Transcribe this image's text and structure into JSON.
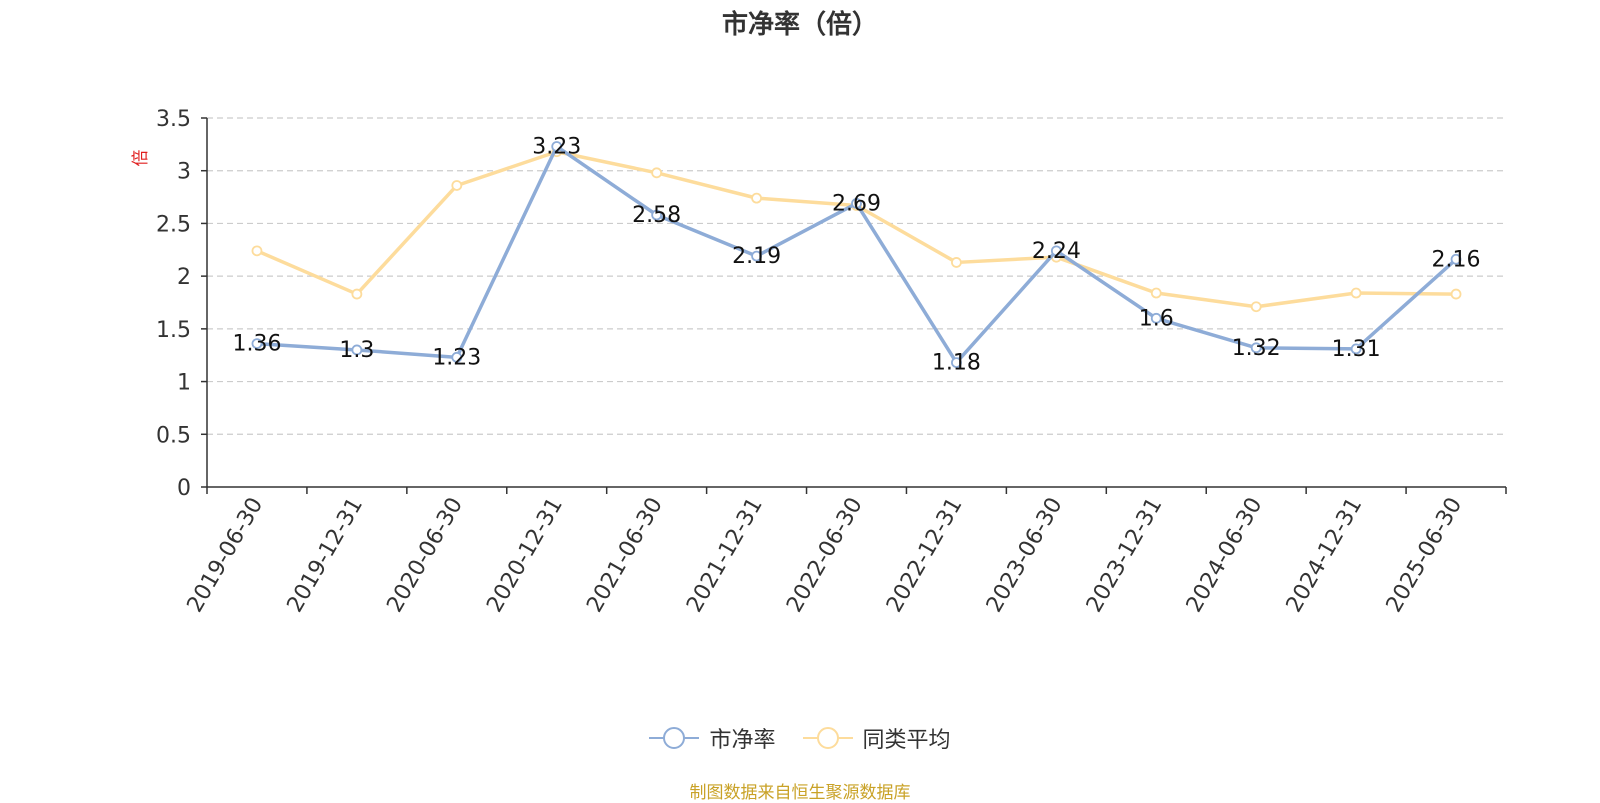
{
  "chart_data": {
    "type": "line",
    "title": "市净率（倍）",
    "ylabel": "倍",
    "ylim": [
      0,
      3.5
    ],
    "yticks": [
      "0",
      "0.5",
      "1",
      "1.5",
      "2",
      "2.5",
      "3",
      "3.5"
    ],
    "categories": [
      "2019-06-30",
      "2019-12-31",
      "2020-06-30",
      "2020-12-31",
      "2021-06-30",
      "2021-12-31",
      "2022-06-30",
      "2022-12-31",
      "2023-06-30",
      "2023-12-31",
      "2024-06-30",
      "2024-12-31",
      "2025-06-30"
    ],
    "series": [
      {
        "name": "市净率",
        "color": "#8eacd7",
        "labeled": true,
        "values": [
          1.36,
          1.3,
          1.23,
          3.23,
          2.58,
          2.19,
          2.69,
          1.18,
          2.24,
          1.6,
          1.32,
          1.31,
          2.16
        ],
        "labels": [
          "1.36",
          "1.3",
          "1.23",
          "3.23",
          "2.58",
          "2.19",
          "2.69",
          "1.18",
          "2.24",
          "1.6",
          "1.32",
          "1.31",
          "2.16"
        ]
      },
      {
        "name": "同类平均",
        "color": "#fddc9c",
        "labeled": false,
        "values": [
          2.24,
          1.83,
          2.86,
          3.18,
          2.98,
          2.74,
          2.67,
          2.13,
          2.18,
          1.84,
          1.71,
          1.84,
          1.83
        ]
      }
    ],
    "grid": true,
    "legend_position": "bottom"
  },
  "source": "制图数据来自恒生聚源数据库"
}
